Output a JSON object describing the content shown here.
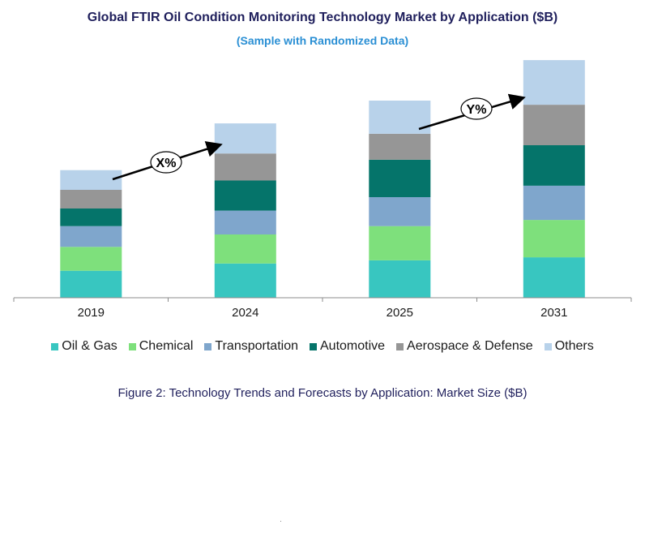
{
  "title": "Global FTIR  Oil Condition Monitoring Technology Market by Application ($B)",
  "subtitle": "(Sample with Randomized Data)",
  "caption": "Figure 2: Technology  Trends  and Forecasts by Application: Market Size ($B)",
  "annotations": {
    "x_label": "X%",
    "y_label": "Y%"
  },
  "colors": {
    "oil_gas": "#38c6c0",
    "chemical": "#7ee07c",
    "transportation": "#7fa6cc",
    "automotive": "#05746a",
    "aerospace": "#969696",
    "others": "#b8d2ea"
  },
  "chart_data": {
    "type": "bar",
    "stacked": true,
    "title": "Global FTIR  Oil Condition Monitoring Technology Market by Application ($B)",
    "subtitle": "(Sample with Randomized Data)",
    "xlabel": "",
    "ylabel": "",
    "categories": [
      "2019",
      "2024",
      "2025",
      "2031"
    ],
    "ylim": [
      0,
      240
    ],
    "legend_position": "bottom",
    "series": [
      {
        "name": "Oil & Gas",
        "color_key": "oil_gas",
        "values": [
          26,
          33,
          36,
          39
        ]
      },
      {
        "name": "Chemical",
        "color_key": "chemical",
        "values": [
          23,
          28,
          33,
          36
        ]
      },
      {
        "name": "Transportation",
        "color_key": "transportation",
        "values": [
          20,
          23,
          28,
          33
        ]
      },
      {
        "name": "Automotive",
        "color_key": "automotive",
        "values": [
          17,
          29,
          36,
          39
        ]
      },
      {
        "name": "Aerospace & Defense",
        "color_key": "aerospace",
        "values": [
          18,
          26,
          25,
          39
        ]
      },
      {
        "name": "Others",
        "color_key": "others",
        "values": [
          19,
          29,
          32,
          43
        ]
      }
    ]
  }
}
